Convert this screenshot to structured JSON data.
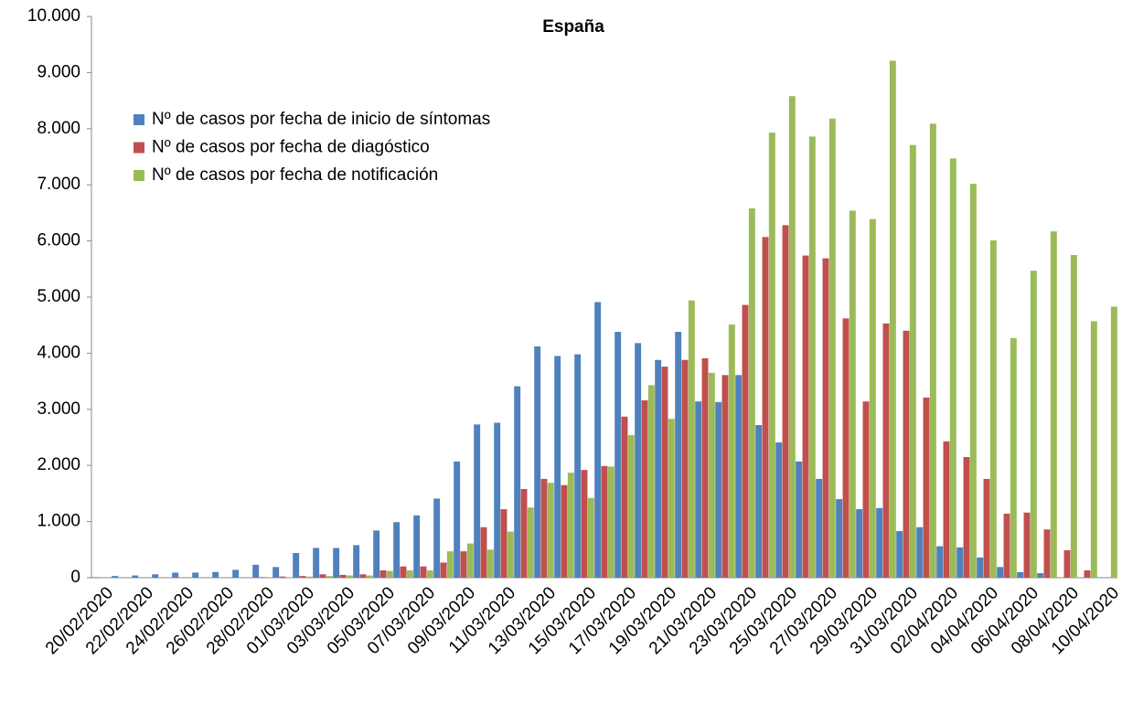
{
  "chart_data": {
    "type": "bar",
    "title": "España",
    "categories": [
      "20/02/2020",
      null,
      "22/02/2020",
      null,
      "24/02/2020",
      null,
      "26/02/2020",
      null,
      "28/02/2020",
      null,
      "01/03/2020",
      null,
      "03/03/2020",
      null,
      "05/03/2020",
      null,
      "07/03/2020",
      null,
      "09/03/2020",
      null,
      "11/03/2020",
      null,
      "13/03/2020",
      null,
      "15/03/2020",
      null,
      "17/03/2020",
      null,
      "19/03/2020",
      null,
      "21/03/2020",
      null,
      "23/03/2020",
      null,
      "25/03/2020",
      null,
      "27/03/2020",
      null,
      "29/03/2020",
      null,
      "31/03/2020",
      null,
      "02/04/2020",
      null,
      "04/04/2020",
      null,
      "06/04/2020",
      null,
      "08/04/2020",
      null,
      "10/04/2020"
    ],
    "series": [
      {
        "name": "Nº de casos por fecha de inicio de síntomas",
        "color": "#4f81bd",
        "values": [
          10,
          30,
          40,
          60,
          90,
          90,
          100,
          140,
          230,
          190,
          440,
          530,
          530,
          580,
          840,
          990,
          1110,
          1410,
          2070,
          2730,
          2760,
          3410,
          4120,
          3950,
          3980,
          4910,
          4380,
          4180,
          3880,
          4380,
          3140,
          3130,
          3610,
          2720,
          2410,
          2070,
          1760,
          1400,
          1220,
          1240,
          830,
          900,
          560,
          540,
          360,
          190,
          100,
          80,
          0,
          0,
          0
        ]
      },
      {
        "name": "Nº de casos por fecha de diagóstico",
        "color": "#c0504d",
        "values": [
          0,
          0,
          0,
          0,
          0,
          0,
          0,
          0,
          10,
          20,
          30,
          60,
          50,
          60,
          130,
          200,
          200,
          270,
          470,
          900,
          1220,
          1580,
          1760,
          1650,
          1920,
          1990,
          2870,
          3160,
          3760,
          3880,
          3910,
          3610,
          4860,
          6070,
          6280,
          5740,
          5690,
          4620,
          3140,
          4530,
          4400,
          3210,
          2430,
          2150,
          1760,
          1140,
          1160,
          860,
          490,
          130,
          0
        ]
      },
      {
        "name": "Nº de casos por fecha de notificación",
        "color": "#9bbb59",
        "values": [
          0,
          0,
          0,
          0,
          0,
          0,
          0,
          0,
          0,
          10,
          20,
          30,
          40,
          40,
          120,
          130,
          130,
          470,
          610,
          500,
          820,
          1250,
          1690,
          1870,
          1420,
          1980,
          2540,
          3430,
          2830,
          4940,
          3650,
          4510,
          6580,
          7930,
          8580,
          7860,
          8180,
          6540,
          6390,
          9210,
          7710,
          8090,
          7470,
          7020,
          6010,
          4270,
          5470,
          6170,
          5750,
          4570,
          4830
        ]
      }
    ],
    "ylim": [
      0,
      10000
    ],
    "yticks": [
      0,
      {
        "value": 1000,
        "label": "1.000"
      },
      {
        "value": 2000,
        "label": "2.000"
      },
      {
        "value": 3000,
        "label": "3.000"
      },
      {
        "value": 4000,
        "label": "4.000"
      },
      {
        "value": 5000,
        "label": "5.000"
      },
      {
        "value": 6000,
        "label": "6.000"
      },
      {
        "value": 7000,
        "label": "7.000"
      },
      {
        "value": 8000,
        "label": "8.000"
      },
      {
        "value": 9000,
        "label": "9.000"
      },
      {
        "value": 10000,
        "label": "10.000"
      }
    ],
    "legend": "top-left",
    "grid": false
  }
}
